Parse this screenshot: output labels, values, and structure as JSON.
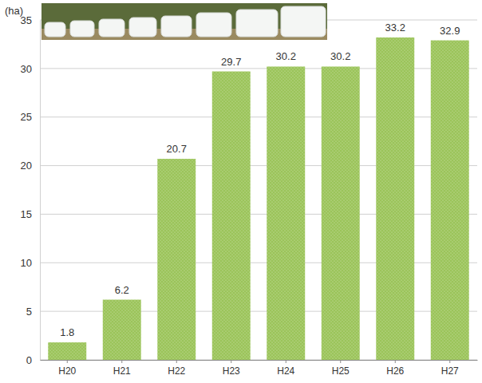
{
  "chart_data": {
    "type": "bar",
    "y_label": "(ha)",
    "categories": [
      "H20",
      "H21",
      "H22",
      "H23",
      "H24",
      "H25",
      "H26",
      "H27"
    ],
    "values": [
      1.8,
      6.2,
      20.7,
      29.7,
      30.2,
      30.2,
      33.2,
      32.9
    ],
    "color": "#9bc45a",
    "ylim": [
      0,
      35
    ],
    "yticks": [
      0,
      5,
      10,
      15,
      20,
      25,
      30,
      35
    ],
    "grid": true,
    "data_labels": true
  }
}
